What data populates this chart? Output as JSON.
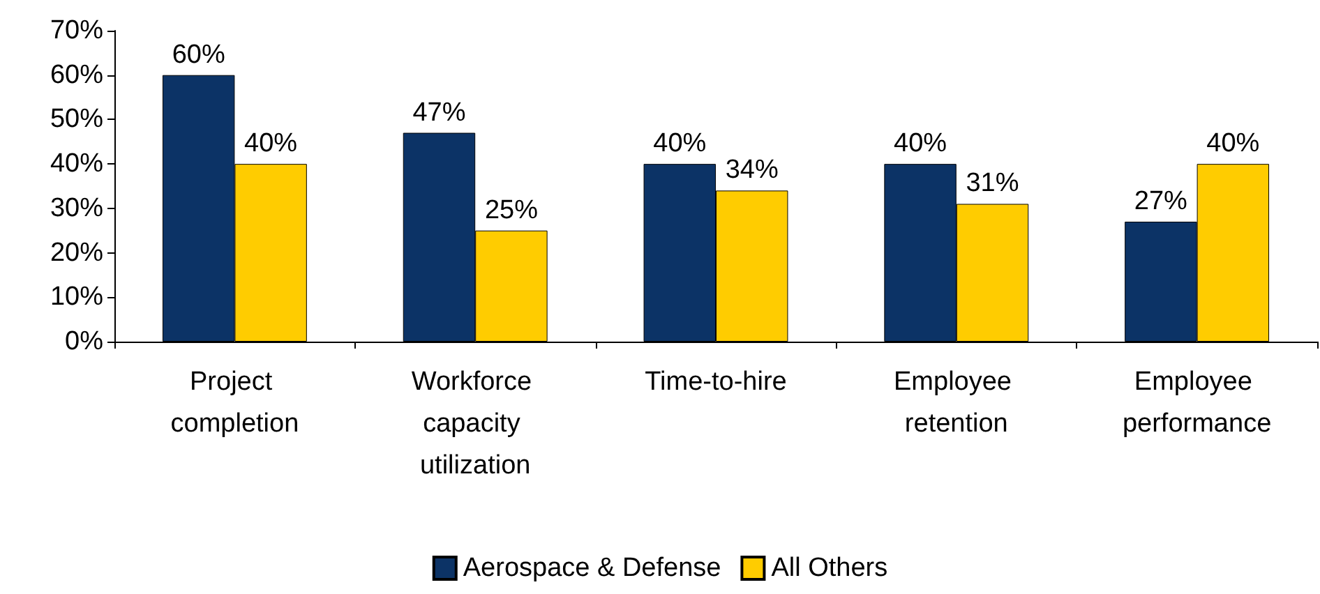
{
  "chart_data": {
    "type": "bar",
    "categories": [
      "Project completion",
      "Workforce capacity utilization",
      "Time-to-hire",
      "Employee retention",
      "Employee performance"
    ],
    "series": [
      {
        "name": "Aerospace & Defense",
        "color": "#0c3366",
        "values": [
          60,
          47,
          40,
          40,
          27
        ],
        "value_labels": [
          "60%",
          "47%",
          "40%",
          "40%",
          "27%"
        ]
      },
      {
        "name": "All Others",
        "color": "#ffcc00",
        "values": [
          40,
          25,
          34,
          31,
          40
        ],
        "value_labels": [
          "40%",
          "25%",
          "34%",
          "31%",
          "40%"
        ]
      }
    ],
    "ylim": [
      0,
      70
    ],
    "yticks": [
      {
        "value": 0,
        "label": "0%"
      },
      {
        "value": 10,
        "label": "10%"
      },
      {
        "value": 20,
        "label": "20%"
      },
      {
        "value": 30,
        "label": "30%"
      },
      {
        "value": 40,
        "label": "40%"
      },
      {
        "value": 50,
        "label": "50%"
      },
      {
        "value": 60,
        "label": "60%"
      },
      {
        "value": 70,
        "label": "70%"
      }
    ],
    "grid": false,
    "legend": "bottom"
  }
}
